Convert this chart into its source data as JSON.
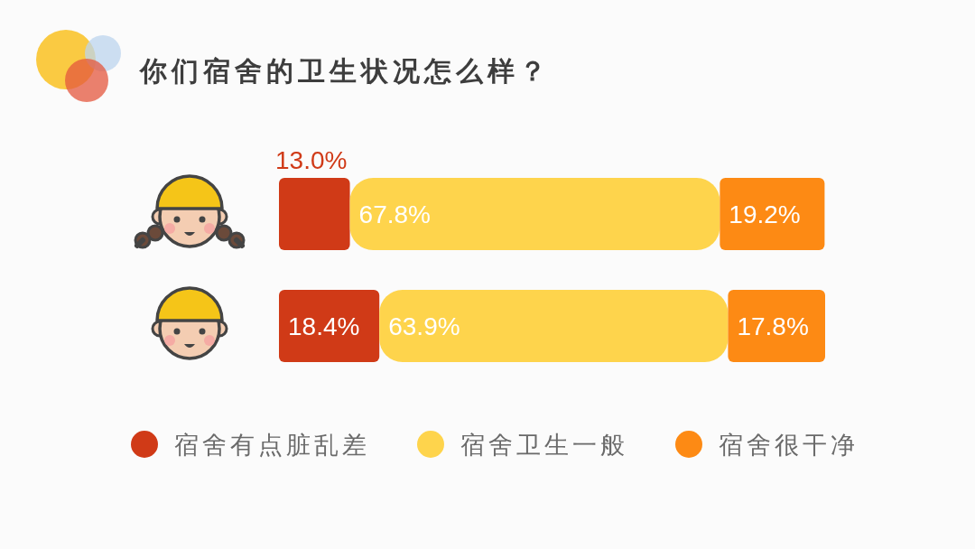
{
  "chart_data": {
    "type": "bar",
    "orientation": "horizontal",
    "stacked": true,
    "title": "你们宿舍的卫生状况怎么样？",
    "categories": [
      null,
      null
    ],
    "series": [
      {
        "name": "宿舍有点脏乱差",
        "color": "#d03a17",
        "values": [
          13.0,
          18.4
        ],
        "value_labels": [
          "13.0%",
          "18.4%"
        ]
      },
      {
        "name": "宿舍卫生一般",
        "color": "#fed44c",
        "values": [
          67.8,
          63.9
        ],
        "value_labels": [
          "67.8%",
          "63.9%"
        ]
      },
      {
        "name": "宿舍很干净",
        "color": "#fd8a14",
        "values": [
          19.2,
          17.8
        ],
        "value_labels": [
          "19.2%",
          "17.8%"
        ]
      }
    ],
    "legend": "bottom"
  }
}
